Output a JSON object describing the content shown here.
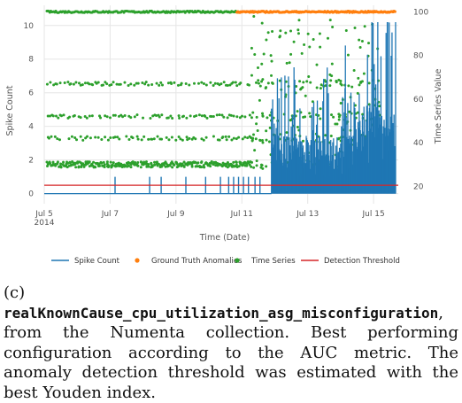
{
  "colors": {
    "spike": "#1f77b4",
    "anomaly": "#ff7f0e",
    "series": "#2ca02c",
    "threshold": "#d62728",
    "grid": "#e6e6e6"
  },
  "chart_data": {
    "type": "line",
    "xlabel": "Time (Date)",
    "ylabel_left": "Spike Count",
    "ylabel_right": "Time Series Value",
    "x_ticks": [
      {
        "day": 5,
        "label": "Jul 5",
        "sublabel": "2014"
      },
      {
        "day": 7,
        "label": "Jul 7",
        "sublabel": ""
      },
      {
        "day": 9,
        "label": "Jul 9",
        "sublabel": ""
      },
      {
        "day": 11,
        "label": "Jul 11",
        "sublabel": ""
      },
      {
        "day": 13,
        "label": "Jul 13",
        "sublabel": ""
      },
      {
        "day": 15,
        "label": "Jul 15",
        "sublabel": ""
      }
    ],
    "xlim_day": [
      5.0,
      15.75
    ],
    "ylim_left": [
      -0.6,
      11.2
    ],
    "yticks_left": [
      "0",
      "2",
      "4",
      "6",
      "8",
      "10"
    ],
    "ylim_right": [
      12,
      103
    ],
    "yticks_right": [
      "20",
      "40",
      "60",
      "80",
      "100"
    ],
    "grid": true,
    "legend_position": "bottom",
    "threshold_value": 0.5,
    "spike_events_day": [
      7.15,
      8.2,
      8.55,
      9.3,
      9.9,
      10.35,
      10.6,
      10.75,
      10.9,
      11.05,
      11.2,
      11.4,
      11.55
    ],
    "anomaly_window_day": [
      10.85,
      15.65
    ],
    "anomaly_level": 100,
    "series_band_levels": [
      30,
      42,
      52,
      67
    ],
    "series_end_levels": [
      21,
      27
    ],
    "legend": [
      {
        "label": "Spike Count",
        "kind": "line",
        "color": "#1f77b4"
      },
      {
        "label": "Ground Truth Anomalies",
        "kind": "dot",
        "color": "#ff7f0e"
      },
      {
        "label": "Time Series",
        "kind": "dot",
        "color": "#2ca02c"
      },
      {
        "label": "Detection Threshold",
        "kind": "line",
        "color": "#d62728"
      }
    ]
  },
  "caption": {
    "label": "(c)",
    "dataset": "realKnownCause_cpu_utilization_asg_misconfiguration",
    "text": ", from the Numenta collection. Best performing configuration according to the AUC metric. The anomaly detection threshold was estimated with the best Youden index."
  }
}
